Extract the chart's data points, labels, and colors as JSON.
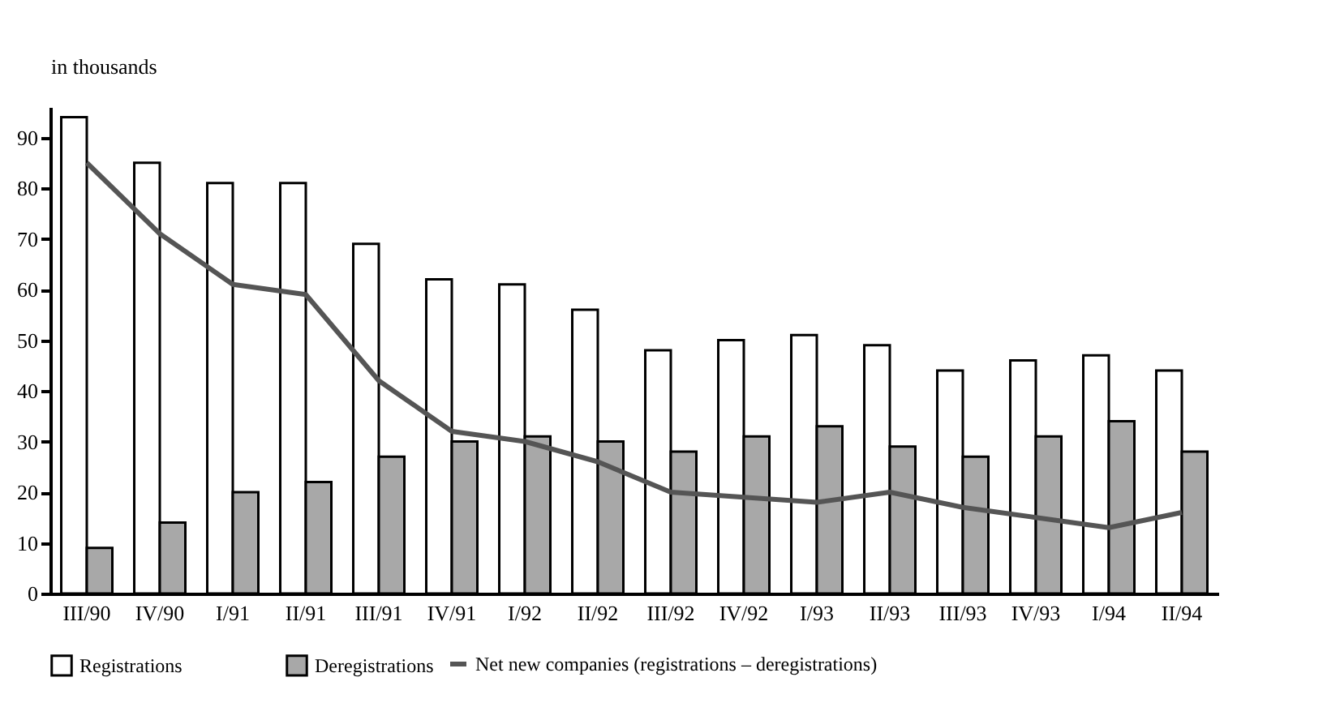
{
  "chart_data": {
    "type": "bar",
    "ylabel": "in thousands",
    "categories": [
      "III/90",
      "IV/90",
      "I/91",
      "II/91",
      "III/91",
      "IV/91",
      "I/92",
      "II/92",
      "III/92",
      "IV/92",
      "I/93",
      "II/93",
      "III/93",
      "IV/93",
      "I/94",
      "II/94"
    ],
    "series": [
      {
        "name": "Registrations",
        "color": "#ffffff",
        "values": [
          94,
          85,
          81,
          81,
          69,
          62,
          61,
          56,
          48,
          50,
          51,
          49,
          44,
          46,
          47,
          44
        ]
      },
      {
        "name": "Deregistrations",
        "color": "#a8a8a8",
        "values": [
          9,
          14,
          20,
          22,
          27,
          30,
          31,
          30,
          28,
          31,
          33,
          29,
          27,
          31,
          34,
          28
        ]
      },
      {
        "name": "Net new companies (registrations – deregistrations)",
        "type": "line",
        "color": "#555555",
        "values": [
          85,
          71,
          61,
          59,
          42,
          32,
          30,
          26,
          20,
          19,
          18,
          20,
          17,
          15,
          13,
          16
        ]
      }
    ],
    "ylim": [
      0,
      96
    ],
    "yticks": [
      0,
      10,
      20,
      30,
      40,
      50,
      60,
      70,
      80,
      90
    ],
    "grid": false,
    "legend": "bottom left"
  }
}
